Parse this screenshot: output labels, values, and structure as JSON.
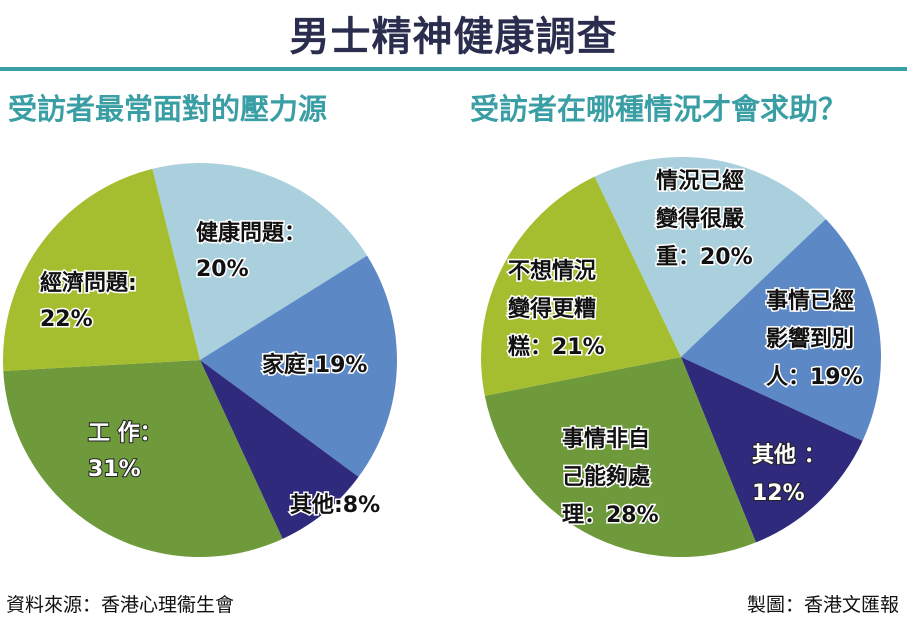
{
  "title": "男士精神健康調查",
  "footer": {
    "source": "資料來源：香港心理衞生會",
    "credit": "製圖：香港文匯報"
  },
  "chart_data": [
    {
      "type": "pie",
      "title": "受訪者最常面對的壓力源",
      "slices": [
        {
          "label": [
            "健康問題：",
            "20%"
          ],
          "value": 20,
          "color": "#a9d0dc"
        },
        {
          "label": [
            "家庭:19%"
          ],
          "value": 19,
          "color": "#5d88c6"
        },
        {
          "label": [
            "其他:8%"
          ],
          "value": 8,
          "color": "#2f2a7c"
        },
        {
          "label": [
            "工 作：",
            "31%"
          ],
          "value": 31,
          "color": "#6e9a3b"
        },
        {
          "label": [
            "經濟問題:",
            "22%"
          ],
          "value": 22,
          "color": "#a4be2f"
        }
      ]
    },
    {
      "type": "pie",
      "title": "受訪者在哪種情況才會求助？",
      "slices": [
        {
          "label": [
            "情況已經",
            "變得很嚴",
            "重：20%"
          ],
          "value": 20,
          "color": "#a9d0dc"
        },
        {
          "label": [
            "事情已經",
            "影響到別",
            "人：19%"
          ],
          "value": 19,
          "color": "#5d88c6"
        },
        {
          "label": [
            "其他 ：",
            "12%"
          ],
          "value": 12,
          "color": "#2f2a7c"
        },
        {
          "label": [
            "事情非自",
            "己能夠處",
            "理：28%"
          ],
          "value": 28,
          "color": "#6e9a3b"
        },
        {
          "label": [
            "不想情況",
            "變得更糟",
            "糕：21%"
          ],
          "value": 21,
          "color": "#a4be2f"
        }
      ]
    }
  ]
}
